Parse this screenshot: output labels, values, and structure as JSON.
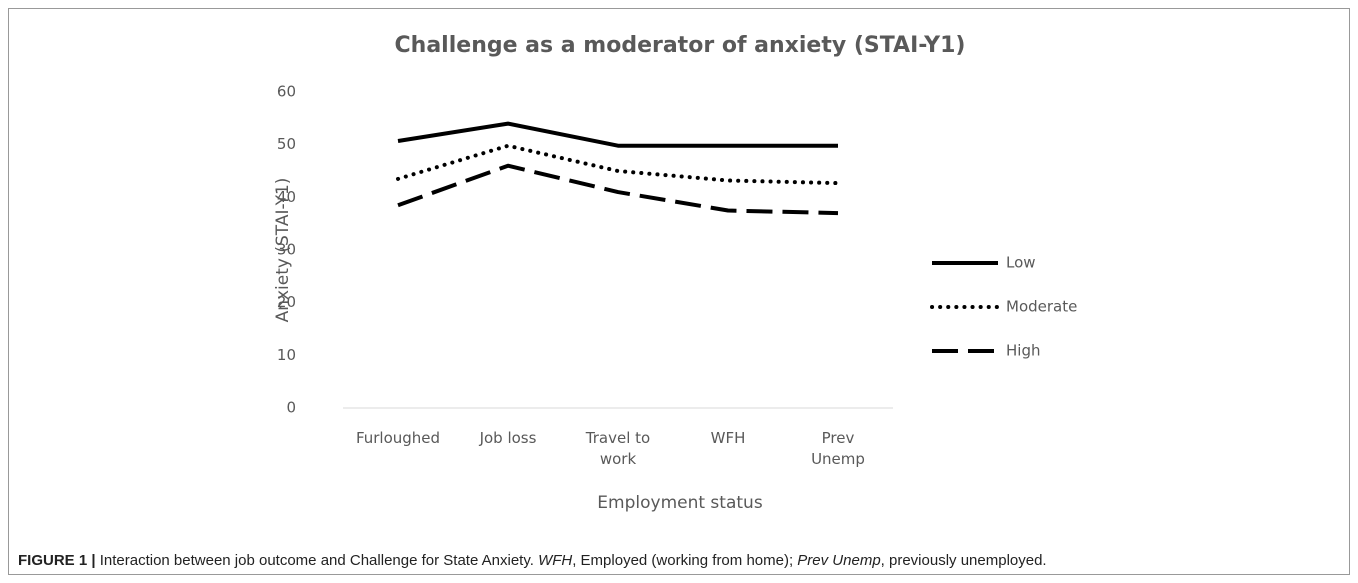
{
  "chart_data": {
    "type": "line",
    "title": "Challenge as a moderator of anxiety (STAI-Y1)",
    "x_label": "Employment status",
    "y_label": "Anxiety (STAI-Y1)",
    "categories": [
      "Furloughed",
      "Job loss",
      "Travel to work",
      "WFH",
      "Prev Unemp"
    ],
    "series": [
      {
        "name": "Low",
        "color": "#000000",
        "dash": "solid",
        "values": [
          50.7,
          54,
          49.8,
          49.8,
          49.8
        ]
      },
      {
        "name": "Moderate",
        "color": "#000000",
        "dash": "dotted",
        "values": [
          43.5,
          49.8,
          45,
          43.2,
          42.7
        ]
      },
      {
        "name": "High",
        "color": "#000000",
        "dash": "dashed",
        "values": [
          38.5,
          46,
          41,
          37.5,
          37
        ]
      }
    ],
    "ylim": [
      0,
      60
    ],
    "yticks": [
      0,
      10,
      20,
      30,
      40,
      50,
      60
    ],
    "grid": false,
    "legend": "right"
  },
  "caption": {
    "label": "FIGURE 1 |",
    "parts": [
      {
        "text": "Interaction between job outcome and Challenge for State Anxiety. "
      },
      {
        "text": "WFH",
        "italic": true
      },
      {
        "text": ", Employed (working from home); "
      },
      {
        "text": "Prev Unemp",
        "italic": true
      },
      {
        "text": ", previously unemployed."
      }
    ]
  }
}
